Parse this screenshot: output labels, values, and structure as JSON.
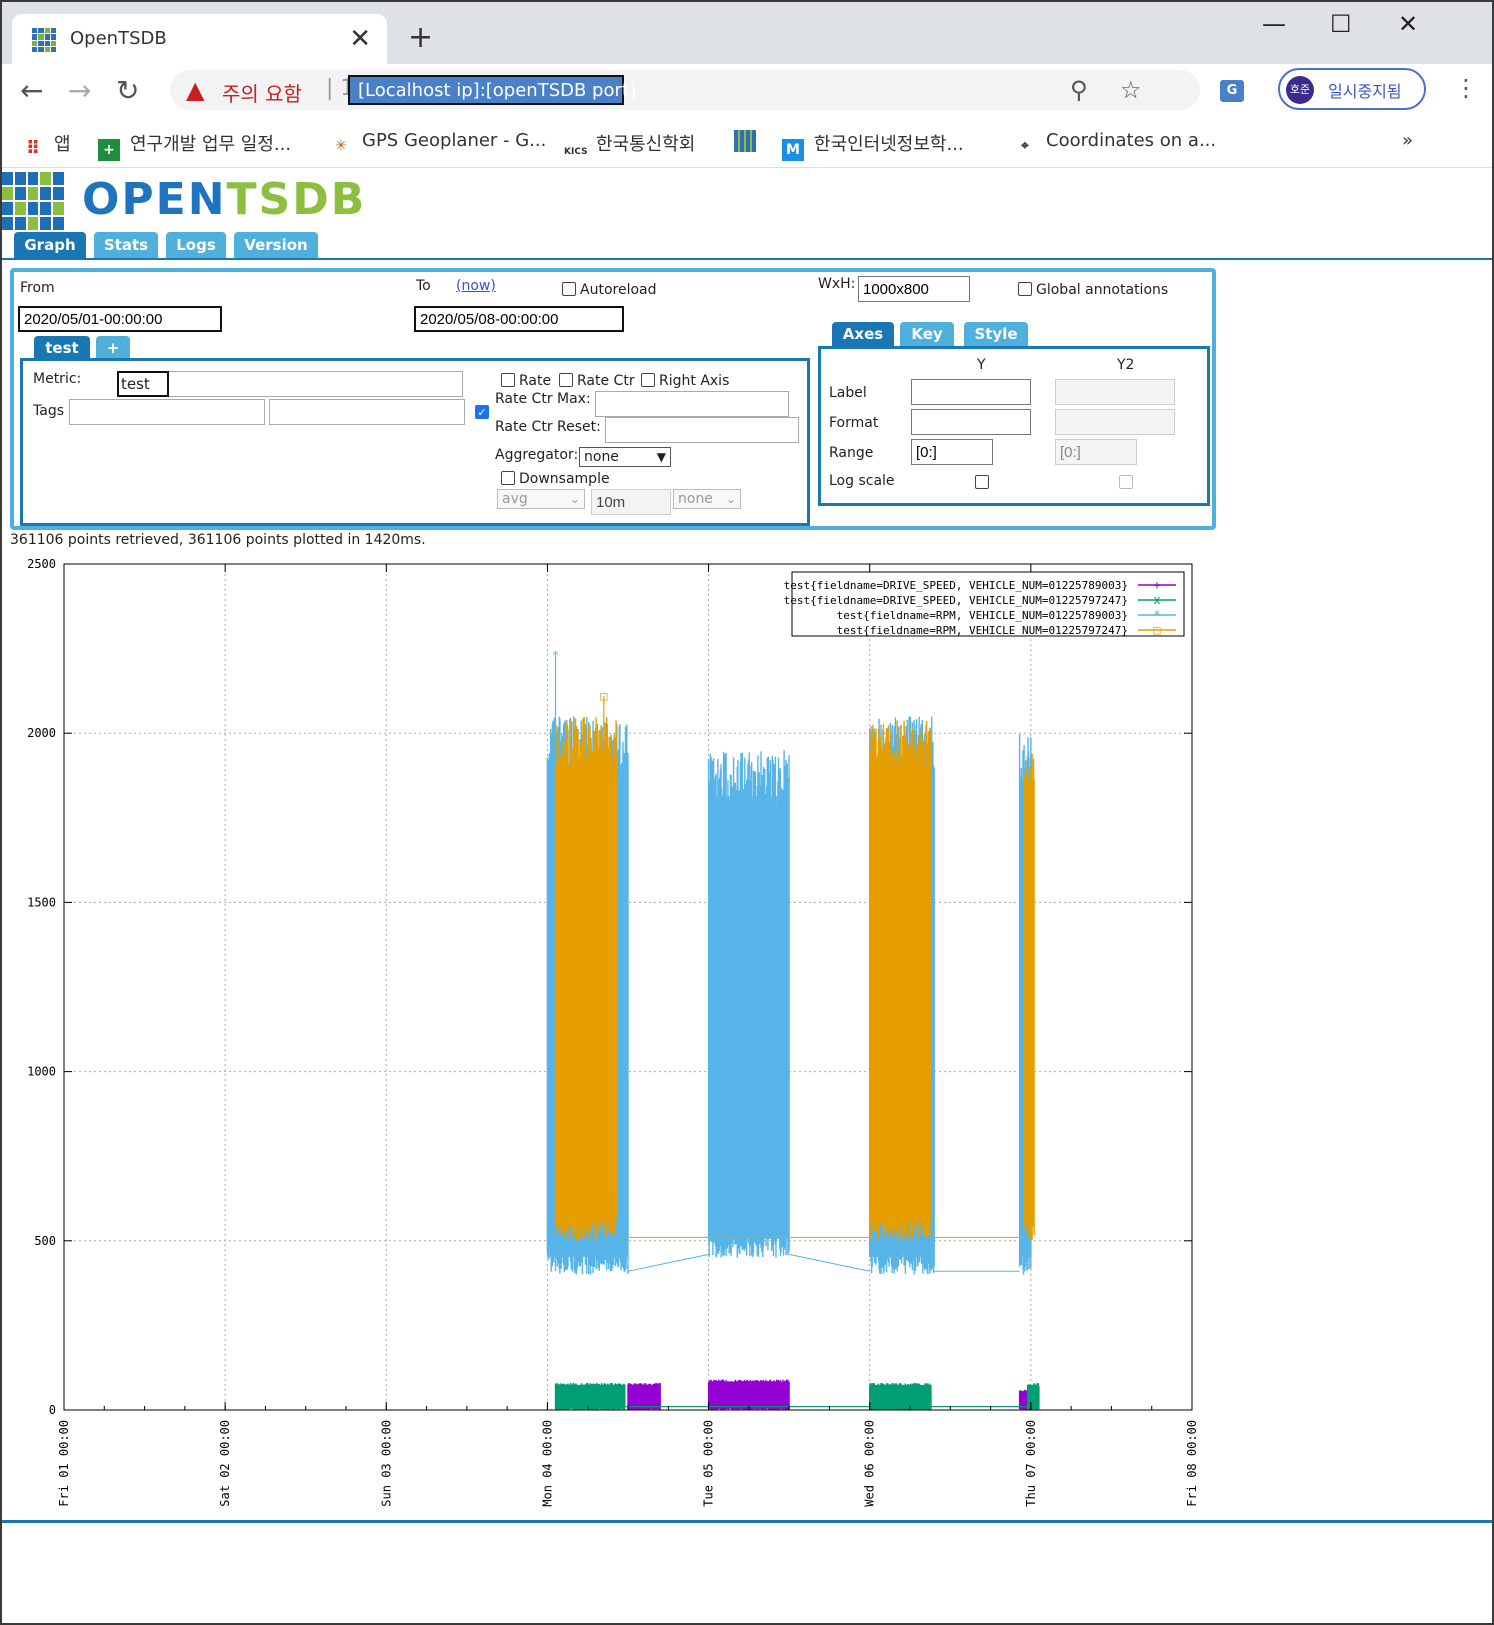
{
  "browser": {
    "tab_title": "OpenTSDB",
    "address": {
      "warning": "주의 요함",
      "separator": "| 1",
      "url": "[Localhost ip]:[openTSDB port]"
    },
    "profile": {
      "avatar": "호준",
      "label": "일시중지됨"
    },
    "bookmarks": [
      {
        "label": "앱",
        "icon": "apps-grid-icon"
      },
      {
        "label": "연구개발 업무 일정...",
        "icon": "green-plus-icon"
      },
      {
        "label": "GPS Geoplaner - G...",
        "icon": "globe-icon"
      },
      {
        "label": "한국통신학회",
        "icon": "kics-icon"
      },
      {
        "label": "",
        "icon": "opentsdb-grid-icon"
      },
      {
        "label": "한국인터넷정보학...",
        "icon": "m-logo-icon"
      },
      {
        "label": "Coordinates on a...",
        "icon": "crosshair-icon"
      }
    ],
    "more_bookmarks": "»"
  },
  "app": {
    "logo_open": "OPEN",
    "logo_tsdb": "TSDB",
    "tabs": [
      "Graph",
      "Stats",
      "Logs",
      "Version"
    ],
    "active_tab": "Graph"
  },
  "query": {
    "from_label": "From",
    "from_value": "2020/05/01-00:00:00",
    "to_label": "To",
    "now_link": "(now)",
    "to_value": "2020/05/08-00:00:00",
    "autoreload_label": "Autoreload",
    "autoreload_checked": false,
    "wxh_label": "WxH:",
    "wxh_value": "1000x800",
    "global_annotations_label": "Global annotations",
    "global_annotations_checked": false,
    "metric_tabs": [
      "test",
      "+"
    ],
    "metric_label": "Metric:",
    "metric_value": "test",
    "tags_label": "Tags",
    "tag_key": "",
    "tag_value": "",
    "tag_checked": true,
    "rate_label": "Rate",
    "rate_ctr_label": "Rate Ctr",
    "right_axis_label": "Right Axis",
    "rate_ctr_max_label": "Rate Ctr Max:",
    "rate_ctr_reset_label": "Rate Ctr Reset:",
    "aggregator_label": "Aggregator:",
    "aggregator_value": "none",
    "downsample_label": "Downsample",
    "downsample_checked": false,
    "downsample_func": "avg",
    "downsample_interval": "10m",
    "downsample_fill": "none"
  },
  "axes_panel": {
    "tabs": [
      "Axes",
      "Key",
      "Style"
    ],
    "active_tab": "Axes",
    "col_y": "Y",
    "col_y2": "Y2",
    "label_row": "Label",
    "format_row": "Format",
    "range_row": "Range",
    "log_scale_row": "Log scale",
    "y_range": "[0:]",
    "y2_range": "[0:]"
  },
  "status": "361106 points retrieved, 361106 points plotted in 1420ms.",
  "chart_data": {
    "type": "scatter",
    "ylim": [
      0,
      2500
    ],
    "y_ticks": [
      0,
      500,
      1000,
      1500,
      2000,
      2500
    ],
    "x_ticks": [
      "Fri 01 00:00",
      "Sat 02 00:00",
      "Sun 03 00:00",
      "Mon 04 00:00",
      "Tue 05 00:00",
      "Wed 06 00:00",
      "Thu 07 00:00",
      "Fri 08 00:00"
    ],
    "grid": true,
    "legend_position": "top-right",
    "series": [
      {
        "name": "test{fieldname=DRIVE_SPEED, VEHICLE_NUM=01225789003}",
        "color": "#9400d3",
        "marker": "+",
        "segments": [
          {
            "x0": 3.5,
            "x1": 3.7,
            "ylo": 0,
            "yhi": 80
          },
          {
            "x0": 4.0,
            "x1": 4.5,
            "ylo": 0,
            "yhi": 90
          },
          {
            "x0": 5.0,
            "x1": 5.38,
            "ylo": 0,
            "yhi": 60
          },
          {
            "x0": 5.93,
            "x1": 6.0,
            "ylo": 0,
            "yhi": 60
          }
        ]
      },
      {
        "name": "test{fieldname=DRIVE_SPEED, VEHICLE_NUM=01225797247}",
        "color": "#009e73",
        "marker": "x",
        "segments": [
          {
            "x0": 3.05,
            "x1": 3.48,
            "ylo": 0,
            "yhi": 80
          },
          {
            "x0": 5.0,
            "x1": 5.38,
            "ylo": 0,
            "yhi": 80
          },
          {
            "x0": 5.98,
            "x1": 6.05,
            "ylo": 0,
            "yhi": 80
          }
        ]
      },
      {
        "name": "test{fieldname=RPM, VEHICLE_NUM=01225789003}",
        "color": "#56b4e9",
        "marker": "*",
        "segments": [
          {
            "x0": 3.0,
            "x1": 3.5,
            "ylo": 400,
            "yhi": 2050
          },
          {
            "x0": 4.0,
            "x1": 4.5,
            "ylo": 450,
            "yhi": 1950
          },
          {
            "x0": 5.0,
            "x1": 5.4,
            "ylo": 400,
            "yhi": 2050
          },
          {
            "x0": 5.93,
            "x1": 6.0,
            "ylo": 400,
            "yhi": 2000
          }
        ],
        "peak": {
          "x": 3.05,
          "y": 2230
        }
      },
      {
        "name": "test{fieldname=RPM, VEHICLE_NUM=01225797247}",
        "color": "#e69f00",
        "marker": "□",
        "segments": [
          {
            "x0": 3.05,
            "x1": 3.43,
            "ylo": 500,
            "yhi": 2050
          },
          {
            "x0": 5.0,
            "x1": 5.38,
            "ylo": 500,
            "yhi": 2040
          },
          {
            "x0": 5.96,
            "x1": 6.02,
            "ylo": 500,
            "yhi": 1950
          }
        ],
        "peak": {
          "x": 3.35,
          "y": 2110
        }
      }
    ]
  }
}
